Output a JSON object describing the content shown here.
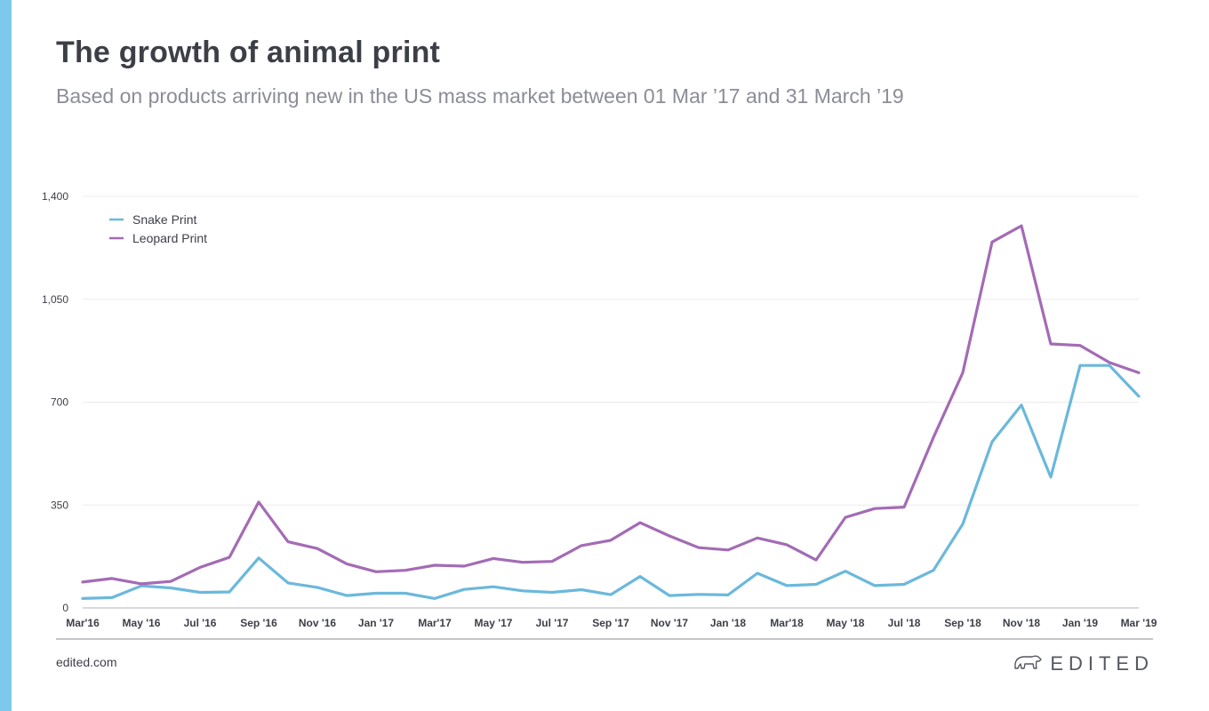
{
  "header": {
    "title": "The growth of animal print",
    "subtitle": "Based on products arriving new in the US mass market between 01 Mar ’17 and 31 March ’19"
  },
  "footer": {
    "site": "edited.com",
    "logo_text": "EDITED",
    "logo_icon": "polar-bear-icon"
  },
  "colors": {
    "accent_bar": "#7ec8ec",
    "snake": "#6bb8dc",
    "leopard": "#a36bb5",
    "grid": "#ececec",
    "axis": "#b5b5b5"
  },
  "chart_data": {
    "type": "line",
    "x": [
      "Mar'16",
      "Apr'16",
      "May '16",
      "Jun'16",
      "Jul '16",
      "Aug'16",
      "Sep '16",
      "Oct'16",
      "Nov '16",
      "Dec'16",
      "Jan '17",
      "Feb'17",
      "Mar'17",
      "Apr'17",
      "May '17",
      "Jun'17",
      "Jul '17",
      "Aug'17",
      "Sep '17",
      "Oct'17",
      "Nov '17",
      "Dec'17",
      "Jan '18",
      "Feb'18",
      "Mar'18",
      "Apr'18",
      "May '18",
      "Jun'18",
      "Jul '18",
      "Aug'18",
      "Sep '18",
      "Oct'18",
      "Nov '18",
      "Dec'18",
      "Jan '19",
      "Feb'19",
      "Mar '19"
    ],
    "tick_labels": [
      "Mar'16",
      "May '16",
      "Jul '16",
      "Sep '16",
      "Nov '16",
      "Jan '17",
      "Mar'17",
      "May '17",
      "Jul '17",
      "Sep '17",
      "Nov '17",
      "Jan '18",
      "Mar'18",
      "May '18",
      "Jul '18",
      "Sep '18",
      "Nov '18",
      "Jan '19",
      "Mar '19"
    ],
    "series": [
      {
        "name": "Snake Print",
        "color": "#6bb8dc",
        "values": [
          32,
          35,
          75,
          68,
          53,
          54,
          170,
          85,
          70,
          42,
          50,
          50,
          32,
          63,
          72,
          58,
          53,
          62,
          45,
          107,
          42,
          46,
          44,
          118,
          76,
          80,
          125,
          76,
          80,
          128,
          285,
          565,
          690,
          445,
          825,
          825,
          720
        ]
      },
      {
        "name": "Leopard Print",
        "color": "#a36bb5",
        "values": [
          88,
          100,
          82,
          90,
          138,
          172,
          360,
          225,
          202,
          150,
          123,
          128,
          145,
          142,
          168,
          155,
          158,
          212,
          230,
          290,
          245,
          205,
          197,
          238,
          215,
          163,
          308,
          338,
          343,
          580,
          800,
          1245,
          1300,
          898,
          893,
          835,
          800
        ]
      }
    ],
    "yticks": [
      0,
      350,
      700,
      1050,
      1400
    ],
    "ytick_labels": [
      "0",
      "350",
      "700",
      "1,050",
      "1,400"
    ],
    "ylim": [
      0,
      1400
    ],
    "grid": "horizontal",
    "legend": "top-left"
  }
}
